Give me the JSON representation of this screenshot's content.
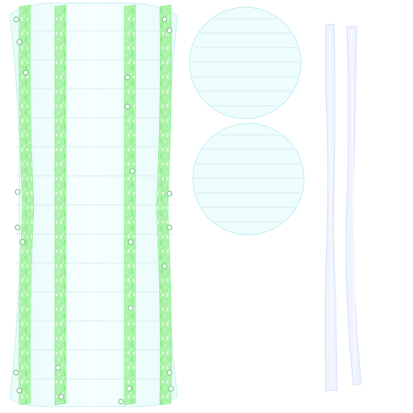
{
  "colors": {
    "background": "#ffffff",
    "panel_fill": "#f3fefe",
    "panel_outline": "#d7f3f3",
    "plank_line": "#d9eef0",
    "green_stripe": "#98f09a",
    "green_stripe_light": "#c9f8c6",
    "rivet": "#ffffff",
    "rivet_ring": "#7fc98a",
    "disc_fill": "#eefdfd",
    "disc_outline": "#c9f1f1",
    "disc_line": "#d7ecef",
    "strap_fill": "#eef3fd",
    "strap_outline": "#dbe4fb"
  }
}
